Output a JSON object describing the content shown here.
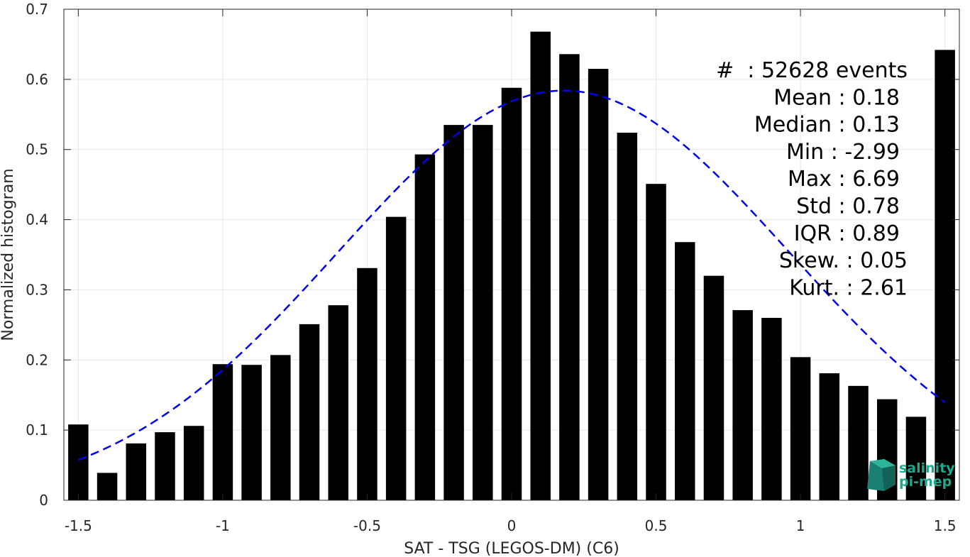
{
  "chart_data": {
    "type": "bar",
    "xlabel": "SAT - TSG (LEGOS-DM) (C6)",
    "ylabel": "Normalized histogram",
    "xlim": [
      -1.55,
      1.55
    ],
    "ylim": [
      0,
      0.7
    ],
    "xticks": [
      -1.5,
      -1,
      -0.5,
      0,
      0.5,
      1,
      1.5
    ],
    "xtick_labels": [
      "-1.5",
      "-1",
      "-0.5",
      "0",
      "0.5",
      "1",
      "1.5"
    ],
    "yticks": [
      0,
      0.1,
      0.2,
      0.3,
      0.4,
      0.5,
      0.6,
      0.7
    ],
    "ytick_labels": [
      "0",
      "0.1",
      "0.2",
      "0.3",
      "0.4",
      "0.5",
      "0.6",
      "0.7"
    ],
    "grid": true,
    "bar_color": "#000000",
    "bin_width": 0.07,
    "x": [
      -1.5,
      -1.4,
      -1.3,
      -1.2,
      -1.1,
      -1.0,
      -0.9,
      -0.8,
      -0.7,
      -0.6,
      -0.5,
      -0.4,
      -0.3,
      -0.2,
      -0.1,
      0.0,
      0.1,
      0.2,
      0.3,
      0.4,
      0.5,
      0.6,
      0.7,
      0.8,
      0.9,
      1.0,
      1.1,
      1.2,
      1.3,
      1.4,
      1.5
    ],
    "values": [
      0.108,
      0.039,
      0.081,
      0.097,
      0.106,
      0.194,
      0.193,
      0.207,
      0.251,
      0.278,
      0.331,
      0.404,
      0.493,
      0.535,
      0.535,
      0.588,
      0.668,
      0.636,
      0.615,
      0.524,
      0.451,
      0.368,
      0.32,
      0.271,
      0.26,
      0.204,
      0.181,
      0.163,
      0.144,
      0.119,
      0.642
    ],
    "fit": {
      "type": "gaussian",
      "style": "dashed",
      "color": "#0000ee",
      "mean": 0.18,
      "std": 0.78,
      "peak": 0.584,
      "x_range": [
        -1.5,
        1.5
      ]
    }
  },
  "stats": [
    "#  : 52628 events",
    "Mean : 0.18",
    "Median : 0.13",
    "Min : -2.99",
    "Max : 6.69",
    "Std : 0.78",
    "IQR : 0.89",
    "Skew. : 0.05",
    "Kurt. : 2.61"
  ],
  "logo": {
    "line1": "salinity",
    "line2": "pi-mep",
    "color": "#1fa88e"
  }
}
